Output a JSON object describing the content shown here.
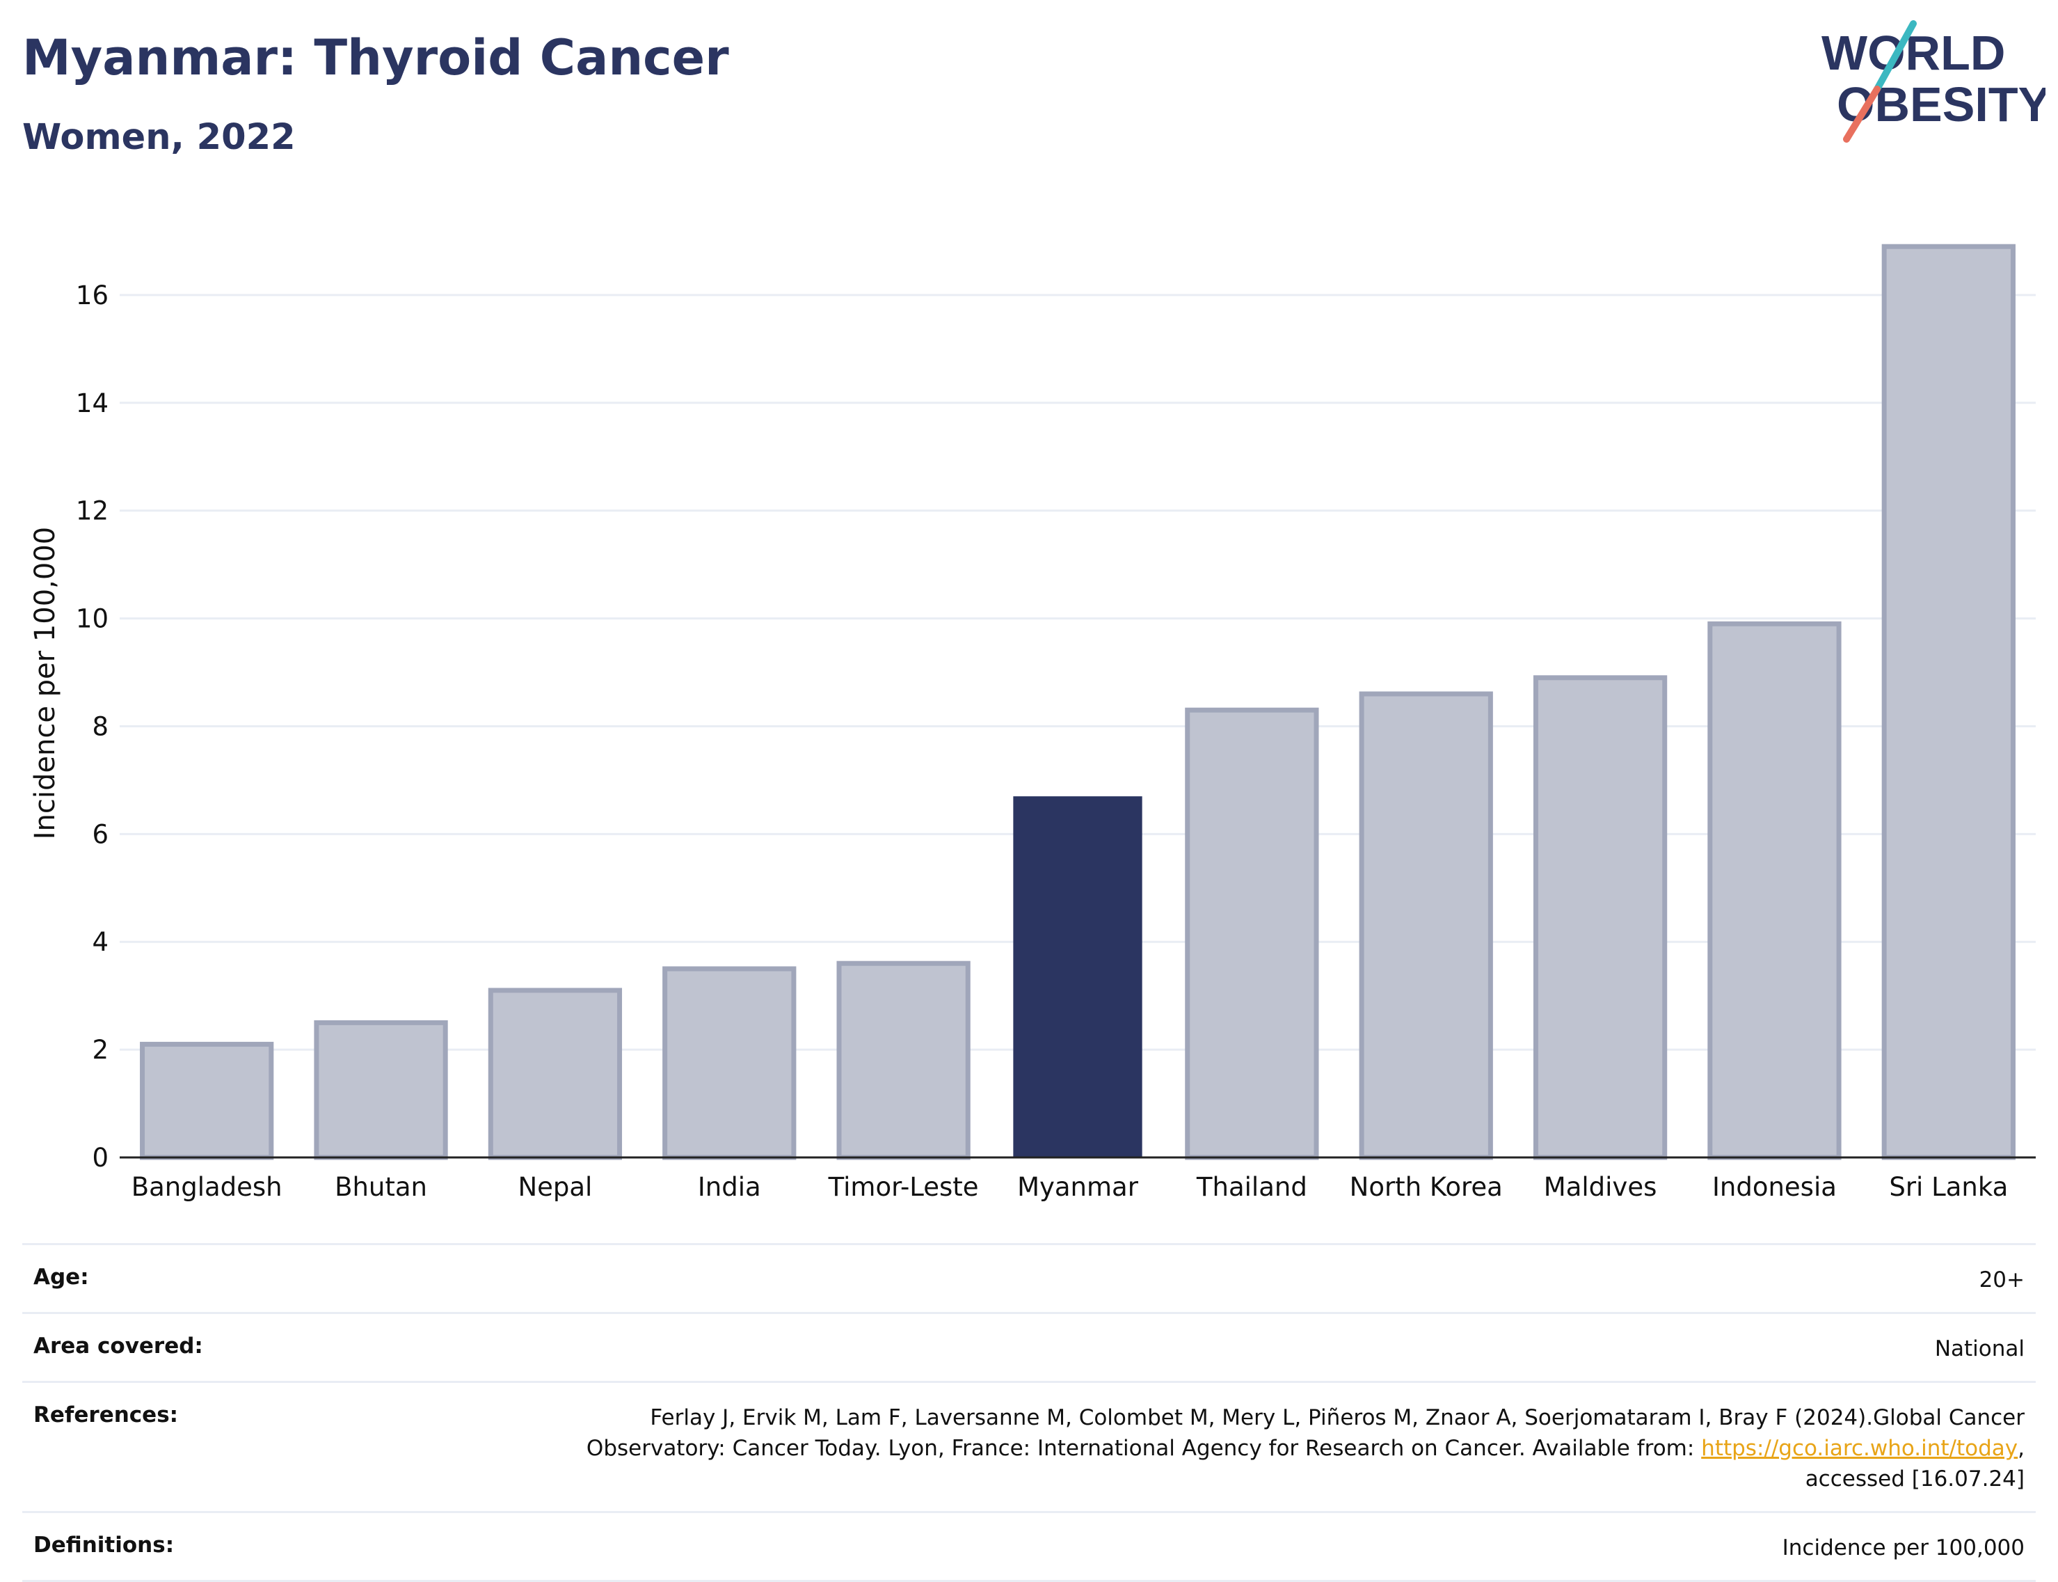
{
  "title": "Myanmar: Thyroid Cancer",
  "subtitle": "Women, 2022",
  "logo": {
    "line1": "WORLD",
    "line2": "OBESITY"
  },
  "colors": {
    "highlight": "#2b3561",
    "bar": "#bfc3d0",
    "bar_edge": "#a0a6ba",
    "title": "#2b3561",
    "grid": "#e9edf4",
    "logo_teal": "#3bb8c1",
    "logo_coral": "#e8705e",
    "link": "#e8a417"
  },
  "chart_data": {
    "type": "bar",
    "categories": [
      "Bangladesh",
      "Bhutan",
      "Nepal",
      "India",
      "Timor-Leste",
      "Myanmar",
      "Thailand",
      "North Korea",
      "Maldives",
      "Indonesia",
      "Sri Lanka"
    ],
    "values": [
      2.1,
      2.5,
      3.1,
      3.5,
      3.6,
      6.7,
      8.3,
      8.6,
      8.9,
      9.9,
      16.9
    ],
    "highlight": "Myanmar",
    "ylabel": "Incidence per 100,000",
    "ylim": [
      0,
      17.6
    ],
    "yticks": [
      0,
      2,
      4,
      6,
      8,
      10,
      12,
      14,
      16
    ],
    "grid": true
  },
  "info": [
    {
      "key": "Age:",
      "value": "20+"
    },
    {
      "key": "Area covered:",
      "value": "National"
    },
    {
      "key": "References:",
      "value_lines": [
        "Ferlay J, Ervik M, Lam F, Laversanne M, Colombet M, Mery L, Piñeros M, Znaor A, Soerjomataram I, Bray F (2024).Global Cancer",
        "Observatory: Cancer Today. Lyon, France: International Agency for Research on Cancer. Available from: ",
        "https://gco.iarc.who.int/today",
        ",",
        "accessed [16.07.24]"
      ]
    },
    {
      "key": "Definitions:",
      "value": "Incidence per 100,000"
    }
  ]
}
